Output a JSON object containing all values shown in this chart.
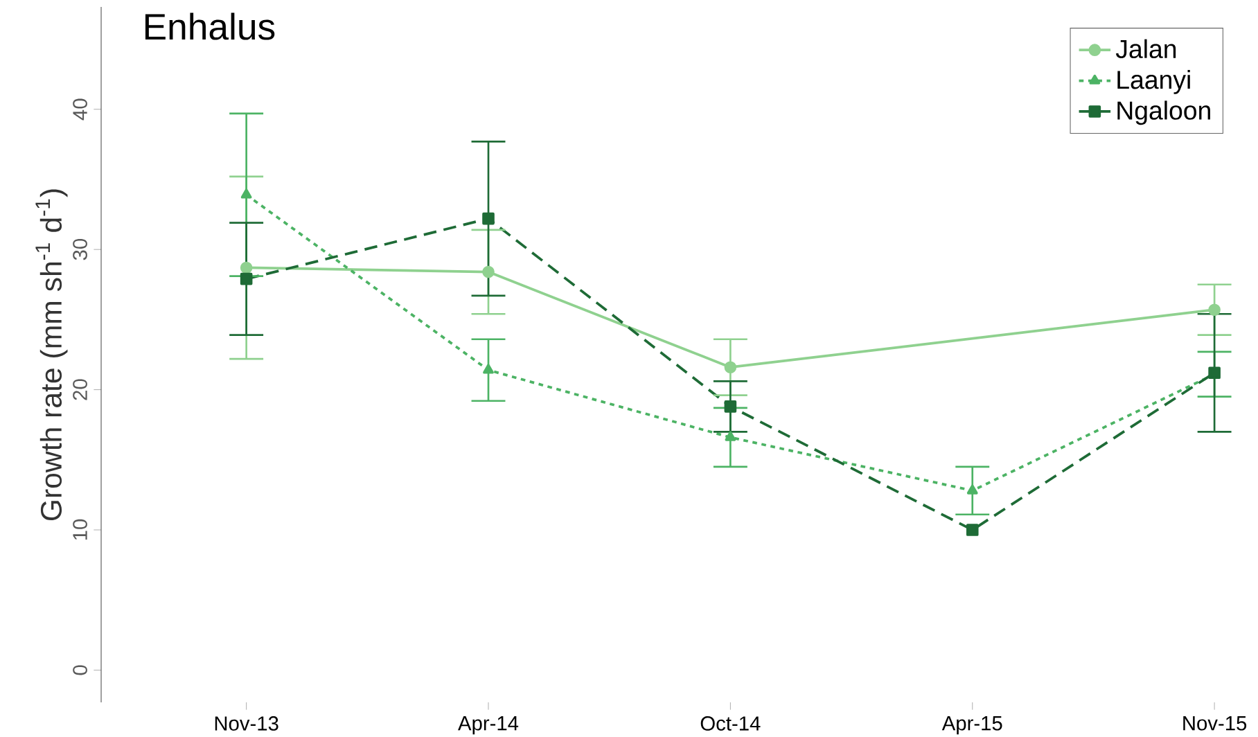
{
  "chart_data": {
    "type": "line",
    "title": "Enhalus",
    "ylabel": "Growth rate (mm sh$^{-1}$ d$^{-1}$)",
    "categories": [
      "Nov-13",
      "Apr-14",
      "Oct-14",
      "Apr-15",
      "Nov-15"
    ],
    "series": [
      {
        "name": "Jalan",
        "color": "#8fd18f",
        "marker": "circle",
        "line_style": "solid",
        "values": [
          28.7,
          28.4,
          21.6,
          null,
          25.7
        ],
        "errors": [
          6.5,
          3.0,
          2.0,
          null,
          1.8
        ]
      },
      {
        "name": "Laanyi",
        "color": "#4cb364",
        "marker": "triangle",
        "line_style": "dotted",
        "values": [
          33.9,
          21.4,
          16.6,
          12.8,
          21.1
        ],
        "errors": [
          5.8,
          2.2,
          2.1,
          1.7,
          1.6
        ]
      },
      {
        "name": "Ngaloon",
        "color": "#1e6b36",
        "marker": "square",
        "line_style": "dashed",
        "values": [
          27.9,
          32.2,
          18.8,
          10.0,
          21.2
        ],
        "errors": [
          4.0,
          5.5,
          1.8,
          null,
          4.2
        ]
      }
    ],
    "ylim": [
      -2.3,
      47.3
    ],
    "yticks": [
      0,
      10,
      20,
      30,
      40
    ],
    "grid": false,
    "legend": "top right"
  }
}
